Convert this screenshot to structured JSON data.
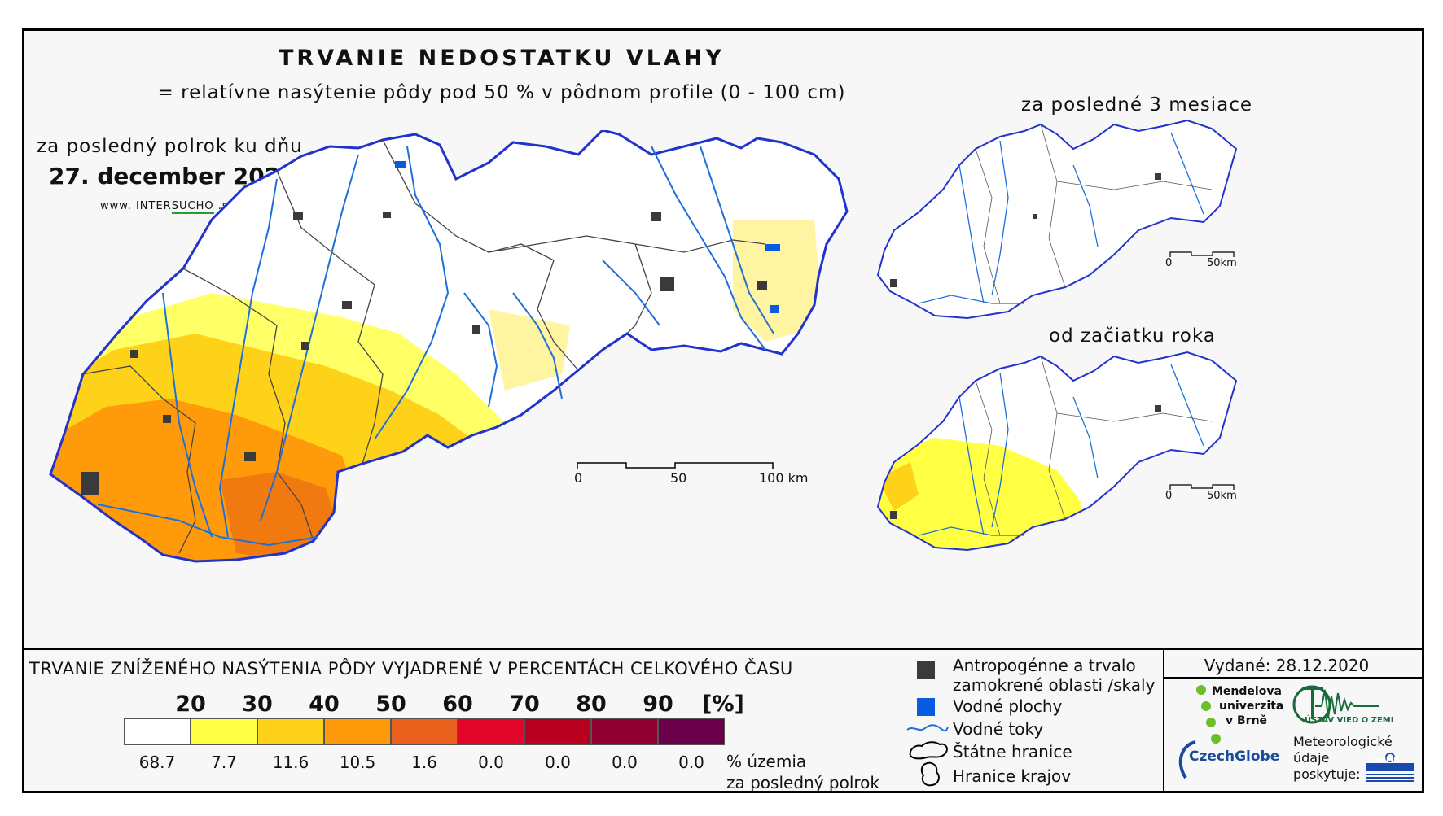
{
  "header": {
    "title": "TRVANIE NEDOSTATKU VLAHY",
    "subtitle": "= relatívne nasýtenie pôdy pod 50 % v pôdnom profile (0 - 100 cm)"
  },
  "main_map": {
    "period_label": "za posledný polrok ku dňu",
    "date": "27. december 2020",
    "website_prefix": "www. INTER",
    "website_highlight": "SUCHO",
    "website_suffix": " .sk",
    "scale": {
      "start": "0",
      "mid": "50",
      "end": "100 km"
    }
  },
  "insets": [
    {
      "title": "za posledné 3 mesiace",
      "scale_start": "0",
      "scale_end": "50km"
    },
    {
      "title": "od začiatku roka",
      "scale_start": "0",
      "scale_end": "50km"
    }
  ],
  "legend": {
    "title": "TRVANIE ZNÍŽENÉHO NASÝTENIA PÔDY VYJADRENÉ V PERCENTÁCH CELKOVÉHO ČASU",
    "ticks": [
      "20",
      "30",
      "40",
      "50",
      "60",
      "70",
      "80",
      "90",
      "[%]"
    ],
    "classes": [
      {
        "color": "#ffffff",
        "percent": "68.7"
      },
      {
        "color": "#ffff44",
        "percent": "7.7"
      },
      {
        "color": "#ffd21a",
        "percent": "11.6"
      },
      {
        "color": "#ff9a0a",
        "percent": "10.5"
      },
      {
        "color": "#e8601c",
        "percent": "1.6"
      },
      {
        "color": "#e3042a",
        "percent": "0.0"
      },
      {
        "color": "#b8001e",
        "percent": "0.0"
      },
      {
        "color": "#900030",
        "percent": "0.0"
      },
      {
        "color": "#6b004a",
        "percent": "0.0"
      }
    ],
    "note_line1": "% územia",
    "note_line2": "za posledný polrok",
    "symbols": {
      "anthropogenic_line1": "Antropogénne a trvalo",
      "anthropogenic_line2": "zamokrené oblasti /skaly",
      "water_bodies": "Vodné plochy",
      "rivers": "Vodné toky",
      "state_border": "Štátne hranice",
      "region_border": "Hranice krajov"
    }
  },
  "issued": {
    "label": "Vydané: 28.12.2020",
    "mendel_1": "Mendelova",
    "mendel_2": "univerzita",
    "mendel_3": "v Brně",
    "ustav": "ÚSTAV VIED O ZEMI",
    "czechglobe": "CzechGlobe",
    "meteo_1": "Meteorologické",
    "meteo_2": "údaje",
    "meteo_3": "poskytuje:",
    "shmu": "SHMÚ"
  },
  "colors": {
    "river": "#1e6fd9",
    "water": "#0a5be0",
    "anthro": "#3a3a3a"
  }
}
